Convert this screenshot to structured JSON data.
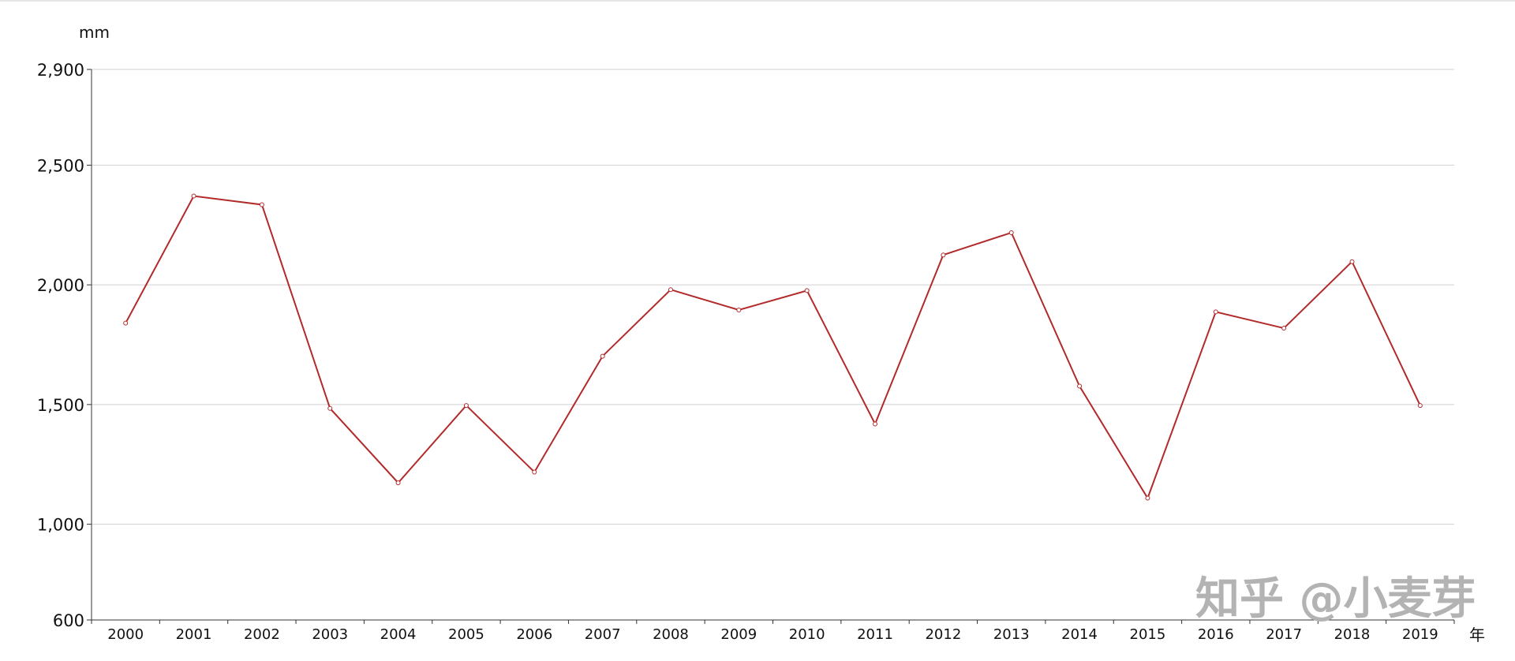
{
  "chart_data": {
    "type": "line",
    "title": "",
    "xlabel": "年",
    "ylabel": "mm",
    "categories": [
      "2000",
      "2001",
      "2002",
      "2003",
      "2004",
      "2005",
      "2006",
      "2007",
      "2008",
      "2009",
      "2010",
      "2011",
      "2012",
      "2013",
      "2014",
      "2015",
      "2016",
      "2017",
      "2018",
      "2019"
    ],
    "series": [
      {
        "values": [
          1840,
          2371,
          2335,
          1484,
          1173,
          1496,
          1218,
          1702,
          1980,
          1895,
          1976,
          1419,
          2125,
          2218,
          1577,
          1109,
          1887,
          1819,
          2097,
          1496
        ]
      }
    ],
    "ylim": [
      600,
      2900
    ],
    "yticks": [
      600,
      1000,
      1500,
      2000,
      2500,
      2900
    ],
    "ytick_labels": [
      "600",
      "1,000",
      "1,500",
      "2,000",
      "2,500",
      "2,900"
    ],
    "grid": true,
    "line_color": "#b22a2a",
    "watermark": "知乎 @小麦芽"
  }
}
